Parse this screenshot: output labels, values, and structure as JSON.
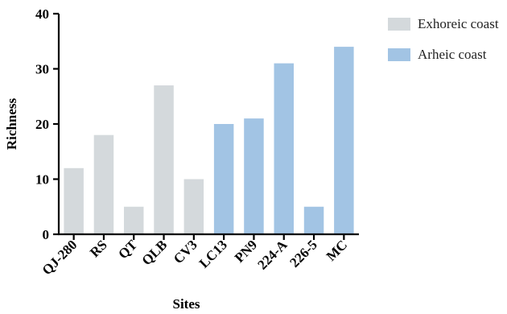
{
  "chart_data": {
    "type": "bar",
    "categories": [
      "QJ-280",
      "RS",
      "QT",
      "QLB",
      "CV3",
      "LC13",
      "PN9",
      "224-A",
      "226-5",
      "MC"
    ],
    "values": [
      12,
      18,
      5,
      27,
      10,
      20,
      21,
      31,
      5,
      34
    ],
    "groups": [
      "Exhoreic coast",
      "Exhoreic coast",
      "Exhoreic coast",
      "Exhoreic coast",
      "Exhoreic coast",
      "Arheic coast",
      "Arheic coast",
      "Arheic coast",
      "Arheic coast",
      "Arheic coast"
    ],
    "legend": [
      {
        "name": "Exhoreic coast",
        "color": "#d4d9dc"
      },
      {
        "name": "Arheic coast",
        "color": "#a2c4e4"
      }
    ],
    "legend_position": "top-right",
    "xlabel": "Sites",
    "ylabel": "Richness",
    "ylim": [
      0,
      40
    ],
    "yticks": [
      0,
      10,
      20,
      30,
      40
    ],
    "grid": false
  }
}
